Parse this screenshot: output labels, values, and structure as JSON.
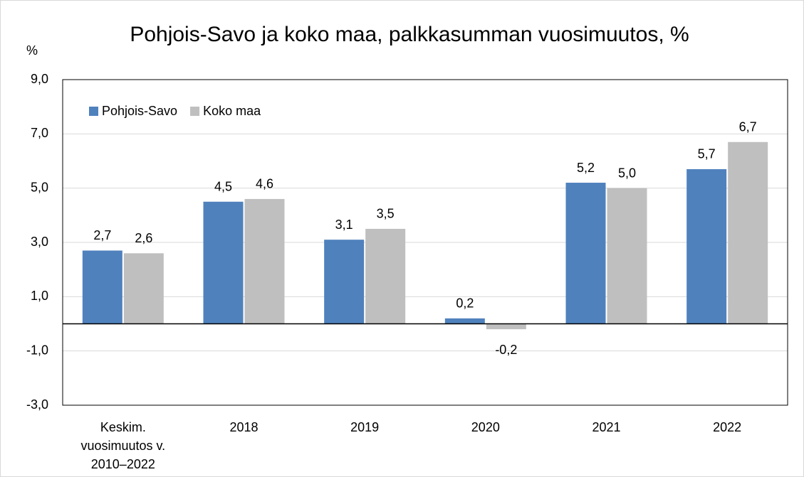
{
  "chart_data": {
    "type": "bar",
    "title": "Pohjois-Savo ja koko maa, palkkasumman vuosimuutos, %",
    "y_label": "%",
    "categories": [
      "Keskim. vuosimuutos v. 2010–2022",
      "2018",
      "2019",
      "2020",
      "2021",
      "2022"
    ],
    "series": [
      {
        "name": "Pohjois-Savo",
        "color": "#4f81bd",
        "values": [
          2.7,
          4.5,
          3.1,
          0.2,
          5.2,
          5.7
        ],
        "value_labels": [
          "2,7",
          "4,5",
          "3,1",
          "0,2",
          "5,2",
          "5,7"
        ]
      },
      {
        "name": "Koko maa",
        "color": "#bfbfbf",
        "values": [
          2.6,
          4.6,
          3.5,
          -0.2,
          5.0,
          6.7
        ],
        "value_labels": [
          "2,6",
          "4,6",
          "3,5",
          "-0,2",
          "5,0",
          "6,7"
        ]
      }
    ],
    "ylim": [
      -3,
      9
    ],
    "yticks": [
      {
        "value": -3,
        "label": "-3,0"
      },
      {
        "value": -1,
        "label": "-1,0"
      },
      {
        "value": 1,
        "label": "1,0"
      },
      {
        "value": 3,
        "label": "3,0"
      },
      {
        "value": 5,
        "label": "5,0"
      },
      {
        "value": 7,
        "label": "7,0"
      },
      {
        "value": 9,
        "label": "9,0"
      }
    ],
    "grid": true,
    "legend": "upper left"
  }
}
